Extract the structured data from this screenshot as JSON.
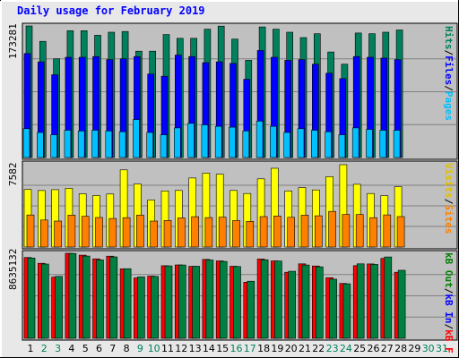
{
  "title": "Daily usage for February 2019",
  "colors": {
    "hits": "#00805c",
    "files": "#0000ff",
    "pages": "#00c0ff",
    "visits": "#ffff00",
    "sites": "#ff8000",
    "kb_in": "#008040",
    "kb_f": "#ff0000",
    "kb_out": "#008000",
    "weekday_label": "#000000",
    "weekend_label": "#00805c",
    "title": "#0000ff",
    "panel_bg": "#c0c0c0"
  },
  "legend_top": {
    "pages": "Pages",
    "files": "Files",
    "hits": "Hits",
    "sep": "/"
  },
  "legend_mid": {
    "sites": "Sites",
    "visits": "Visits",
    "sep": "/"
  },
  "legend_bot": {
    "kb_f": "kB F",
    "kb_in": "kB In",
    "kb_out": "kB Out",
    "sep": "/"
  },
  "chart_data": [
    {
      "type": "bar",
      "panel": "hits-files-pages",
      "y_max_label": "173281",
      "ylim": [
        0,
        173281
      ],
      "categories": [
        "1",
        "2",
        "3",
        "4",
        "5",
        "6",
        "7",
        "8",
        "9",
        "10",
        "11",
        "12",
        "13",
        "14",
        "15",
        "16",
        "17",
        "18",
        "19",
        "20",
        "21",
        "22",
        "23",
        "24",
        "25",
        "26",
        "27",
        "28",
        "29",
        "30",
        "31"
      ],
      "series": [
        {
          "name": "Hits",
          "values": [
            173281,
            153000,
            130000,
            167000,
            167000,
            161000,
            165000,
            166000,
            140000,
            140000,
            162000,
            157000,
            157000,
            169000,
            173000,
            156000,
            128000,
            172000,
            169000,
            165000,
            158000,
            163000,
            139000,
            123000,
            164000,
            163000,
            165000,
            168000,
            0,
            0,
            0
          ]
        },
        {
          "name": "Files",
          "values": [
            137000,
            126000,
            109000,
            132000,
            132000,
            133000,
            129000,
            130000,
            133000,
            110000,
            107000,
            135000,
            133000,
            125000,
            126000,
            124000,
            103000,
            141000,
            132000,
            128000,
            129000,
            123000,
            111000,
            104000,
            133000,
            132000,
            131000,
            129000,
            0,
            0,
            0
          ]
        },
        {
          "name": "Pages",
          "values": [
            38000,
            33000,
            30000,
            36000,
            35000,
            36000,
            35000,
            34000,
            50000,
            33000,
            30000,
            39000,
            45000,
            43000,
            41000,
            40000,
            35000,
            48000,
            41000,
            33000,
            38000,
            36000,
            34000,
            30000,
            39000,
            37000,
            36000,
            36000,
            0,
            0,
            0
          ]
        }
      ]
    },
    {
      "type": "bar",
      "panel": "visits-sites",
      "y_max_label": "7582",
      "ylim": [
        0,
        7582
      ],
      "categories": [
        "1",
        "2",
        "3",
        "4",
        "5",
        "6",
        "7",
        "8",
        "9",
        "10",
        "11",
        "12",
        "13",
        "14",
        "15",
        "16",
        "17",
        "18",
        "19",
        "20",
        "21",
        "22",
        "23",
        "24",
        "25",
        "26",
        "27",
        "28",
        "29",
        "30",
        "31"
      ],
      "series": [
        {
          "name": "Visits",
          "values": [
            5310,
            5200,
            5280,
            5410,
            4900,
            4740,
            4880,
            7100,
            5800,
            4330,
            5170,
            5210,
            6350,
            6810,
            6700,
            5210,
            4930,
            6280,
            7250,
            5160,
            5470,
            5260,
            6480,
            7582,
            5780,
            4930,
            4730,
            5550,
            0,
            0,
            0
          ]
        },
        {
          "name": "Sites",
          "values": [
            2950,
            2490,
            2390,
            2930,
            2830,
            2720,
            2630,
            2700,
            2930,
            2390,
            2440,
            2680,
            2790,
            2710,
            2750,
            2440,
            2360,
            2800,
            2860,
            2740,
            2930,
            2880,
            3280,
            3000,
            2990,
            2700,
            2960,
            2800,
            0,
            0,
            0
          ]
        }
      ]
    },
    {
      "type": "bar",
      "panel": "kb",
      "y_max_label": "8635132",
      "ylim": [
        0,
        8635132
      ],
      "categories": [
        "1",
        "2",
        "3",
        "4",
        "5",
        "6",
        "7",
        "8",
        "9",
        "10",
        "11",
        "12",
        "13",
        "14",
        "15",
        "16",
        "17",
        "18",
        "19",
        "20",
        "21",
        "22",
        "23",
        "24",
        "25",
        "26",
        "27",
        "28",
        "29",
        "30",
        "31"
      ],
      "series": [
        {
          "name": "kB F",
          "values": [
            8210000,
            7620000,
            6220000,
            8635132,
            8440000,
            8070000,
            8340000,
            7060000,
            6140000,
            6320000,
            7370000,
            7450000,
            7310000,
            8020000,
            7860000,
            7320000,
            5700000,
            8050000,
            7860000,
            6710000,
            7560000,
            7340000,
            6150000,
            5570000,
            7380000,
            7550000,
            8120000,
            6710000,
            0,
            0,
            0
          ]
        },
        {
          "name": "kB In",
          "values": [
            8150000,
            7540000,
            6290000,
            8620000,
            8350000,
            7960000,
            8270000,
            7070000,
            6240000,
            6280000,
            7350000,
            7440000,
            7320000,
            7950000,
            7810000,
            7290000,
            5800000,
            7980000,
            7840000,
            6810000,
            7440000,
            7260000,
            6010000,
            5540000,
            7560000,
            7510000,
            8260000,
            6910000,
            0,
            0,
            0
          ]
        }
      ]
    }
  ],
  "x_labels": [
    "1",
    "2",
    "3",
    "4",
    "5",
    "6",
    "7",
    "8",
    "9",
    "10",
    "11",
    "12",
    "13",
    "14",
    "15",
    "16",
    "17",
    "18",
    "19",
    "20",
    "21",
    "22",
    "23",
    "24",
    "25",
    "26",
    "27",
    "28",
    "29",
    "30",
    "31"
  ],
  "weekend_days": [
    "2",
    "3",
    "9",
    "10",
    "16",
    "17",
    "23",
    "24",
    "30",
    "31"
  ]
}
